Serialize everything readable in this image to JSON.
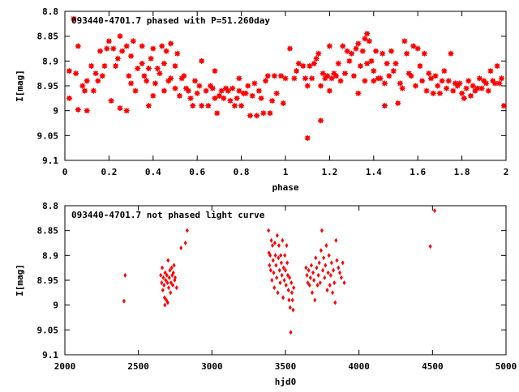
{
  "chart_data": [
    {
      "type": "scatter",
      "title": "093440-4701.7 phased with P=51.260day",
      "xlabel": "phase",
      "ylabel": "I[mag]",
      "xlim": [
        0,
        2
      ],
      "ylim": [
        9.1,
        8.8
      ],
      "y_inverted": true,
      "marker": "star",
      "grid": false,
      "color": "#ff0000",
      "xticks": [
        "0",
        "0.2",
        "0.4",
        "0.6",
        "0.8",
        "1",
        "1.2",
        "1.4",
        "1.6",
        "1.8",
        "2"
      ],
      "yticks": [
        "8.8",
        "8.85",
        "8.9",
        "8.95",
        "9",
        "9.05",
        "9.1"
      ],
      "points": [
        [
          0.02,
          8.92
        ],
        [
          0.02,
          8.975
        ],
        [
          0.04,
          8.815
        ],
        [
          0.05,
          8.925
        ],
        [
          0.06,
          8.998
        ],
        [
          0.06,
          8.87
        ],
        [
          0.08,
          8.95
        ],
        [
          0.09,
          8.96
        ],
        [
          0.1,
          9.0
        ],
        [
          0.1,
          8.94
        ],
        [
          0.12,
          8.91
        ],
        [
          0.13,
          8.96
        ],
        [
          0.14,
          8.925
        ],
        [
          0.15,
          8.94
        ],
        [
          0.16,
          8.88
        ],
        [
          0.17,
          8.93
        ],
        [
          0.18,
          8.91
        ],
        [
          0.19,
          8.875
        ],
        [
          0.2,
          8.86
        ],
        [
          0.21,
          8.98
        ],
        [
          0.22,
          8.875
        ],
        [
          0.23,
          8.91
        ],
        [
          0.24,
          8.895
        ],
        [
          0.25,
          8.85
        ],
        [
          0.25,
          8.995
        ],
        [
          0.26,
          8.88
        ],
        [
          0.28,
          8.87
        ],
        [
          0.28,
          9.0
        ],
        [
          0.29,
          8.93
        ],
        [
          0.3,
          8.945
        ],
        [
          0.3,
          8.89
        ],
        [
          0.31,
          8.86
        ],
        [
          0.32,
          8.96
        ],
        [
          0.33,
          8.915
        ],
        [
          0.35,
          8.905
        ],
        [
          0.35,
          8.87
        ],
        [
          0.36,
          8.93
        ],
        [
          0.37,
          8.94
        ],
        [
          0.38,
          8.915
        ],
        [
          0.38,
          8.99
        ],
        [
          0.39,
          8.895
        ],
        [
          0.4,
          8.875
        ],
        [
          0.4,
          8.97
        ],
        [
          0.41,
          8.945
        ],
        [
          0.42,
          8.915
        ],
        [
          0.43,
          8.925
        ],
        [
          0.44,
          8.87
        ],
        [
          0.45,
          8.905
        ],
        [
          0.45,
          8.96
        ],
        [
          0.46,
          8.88
        ],
        [
          0.47,
          8.94
        ],
        [
          0.48,
          8.865
        ],
        [
          0.48,
          8.935
        ],
        [
          0.5,
          8.91
        ],
        [
          0.5,
          8.955
        ],
        [
          0.51,
          8.885
        ],
        [
          0.52,
          8.97
        ],
        [
          0.53,
          8.935
        ],
        [
          0.54,
          8.93
        ],
        [
          0.55,
          8.955
        ],
        [
          0.56,
          8.96
        ],
        [
          0.57,
          8.975
        ],
        [
          0.58,
          8.99
        ],
        [
          0.59,
          8.94
        ],
        [
          0.6,
          8.965
        ],
        [
          0.61,
          8.95
        ],
        [
          0.62,
          8.99
        ],
        [
          0.62,
          8.9
        ],
        [
          0.64,
          8.96
        ],
        [
          0.65,
          8.99
        ],
        [
          0.66,
          8.95
        ],
        [
          0.67,
          8.955
        ],
        [
          0.68,
          8.975
        ],
        [
          0.68,
          8.92
        ],
        [
          0.69,
          9.005
        ],
        [
          0.7,
          8.97
        ],
        [
          0.71,
          8.96
        ],
        [
          0.72,
          8.975
        ],
        [
          0.73,
          8.955
        ],
        [
          0.74,
          8.96
        ],
        [
          0.75,
          8.98
        ],
        [
          0.76,
          8.955
        ],
        [
          0.77,
          8.99
        ],
        [
          0.78,
          8.975
        ],
        [
          0.79,
          8.96
        ],
        [
          0.79,
          8.935
        ],
        [
          0.8,
          8.99
        ],
        [
          0.81,
          8.965
        ],
        [
          0.82,
          8.965
        ],
        [
          0.83,
          8.95
        ],
        [
          0.84,
          9.01
        ],
        [
          0.85,
          8.97
        ],
        [
          0.86,
          8.945
        ],
        [
          0.87,
          9.01
        ],
        [
          0.88,
          8.96
        ],
        [
          0.89,
          8.975
        ],
        [
          0.9,
          9.005
        ],
        [
          0.91,
          8.94
        ],
        [
          0.92,
          8.93
        ],
        [
          0.93,
          9.005
        ],
        [
          0.94,
          8.98
        ],
        [
          0.95,
          8.93
        ],
        [
          0.96,
          8.965
        ],
        [
          0.98,
          8.93
        ],
        [
          0.99,
          8.985
        ],
        [
          1.0,
          8.935
        ],
        [
          1.02,
          8.875
        ],
        [
          1.04,
          8.935
        ],
        [
          1.05,
          8.92
        ],
        [
          1.06,
          8.905
        ],
        [
          1.08,
          8.91
        ],
        [
          1.09,
          8.935
        ],
        [
          1.1,
          9.055
        ],
        [
          1.1,
          8.95
        ],
        [
          1.11,
          8.91
        ],
        [
          1.12,
          8.935
        ],
        [
          1.13,
          8.905
        ],
        [
          1.14,
          8.895
        ],
        [
          1.15,
          8.885
        ],
        [
          1.16,
          8.95
        ],
        [
          1.16,
          9.02
        ],
        [
          1.17,
          8.925
        ],
        [
          1.18,
          8.935
        ],
        [
          1.19,
          8.93
        ],
        [
          1.2,
          8.96
        ],
        [
          1.2,
          8.87
        ],
        [
          1.21,
          8.935
        ],
        [
          1.22,
          8.925
        ],
        [
          1.23,
          8.93
        ],
        [
          1.24,
          8.905
        ],
        [
          1.25,
          8.94
        ],
        [
          1.26,
          8.87
        ],
        [
          1.27,
          8.925
        ],
        [
          1.28,
          8.88
        ],
        [
          1.29,
          8.9
        ],
        [
          1.3,
          8.885
        ],
        [
          1.31,
          8.93
        ],
        [
          1.32,
          8.875
        ],
        [
          1.33,
          8.865
        ],
        [
          1.33,
          8.965
        ],
        [
          1.34,
          8.91
        ],
        [
          1.35,
          8.88
        ],
        [
          1.36,
          8.94
        ],
        [
          1.36,
          8.855
        ],
        [
          1.37,
          8.845
        ],
        [
          1.37,
          8.905
        ],
        [
          1.38,
          8.86
        ],
        [
          1.39,
          8.9
        ],
        [
          1.4,
          8.92
        ],
        [
          1.4,
          8.94
        ],
        [
          1.41,
          8.88
        ],
        [
          1.42,
          8.935
        ],
        [
          1.43,
          8.935
        ],
        [
          1.44,
          8.885
        ],
        [
          1.45,
          8.945
        ],
        [
          1.45,
          8.99
        ],
        [
          1.46,
          8.905
        ],
        [
          1.47,
          8.93
        ],
        [
          1.48,
          8.88
        ],
        [
          1.49,
          8.92
        ],
        [
          1.5,
          8.905
        ],
        [
          1.51,
          8.985
        ],
        [
          1.52,
          8.945
        ],
        [
          1.53,
          8.955
        ],
        [
          1.54,
          8.86
        ],
        [
          1.55,
          8.885
        ],
        [
          1.56,
          8.925
        ],
        [
          1.57,
          8.93
        ],
        [
          1.58,
          8.87
        ],
        [
          1.59,
          8.95
        ],
        [
          1.6,
          8.875
        ],
        [
          1.61,
          8.91
        ],
        [
          1.62,
          8.94
        ],
        [
          1.63,
          8.885
        ],
        [
          1.64,
          8.96
        ],
        [
          1.65,
          8.925
        ],
        [
          1.66,
          8.935
        ],
        [
          1.67,
          8.965
        ],
        [
          1.68,
          8.93
        ],
        [
          1.69,
          8.95
        ],
        [
          1.7,
          8.965
        ],
        [
          1.71,
          8.94
        ],
        [
          1.72,
          8.92
        ],
        [
          1.73,
          8.955
        ],
        [
          1.74,
          8.94
        ],
        [
          1.75,
          8.885
        ],
        [
          1.76,
          8.96
        ],
        [
          1.77,
          8.945
        ],
        [
          1.78,
          8.95
        ],
        [
          1.79,
          8.945
        ],
        [
          1.8,
          8.965
        ],
        [
          1.81,
          8.975
        ],
        [
          1.82,
          8.955
        ],
        [
          1.83,
          8.94
        ],
        [
          1.84,
          8.97
        ],
        [
          1.85,
          8.95
        ],
        [
          1.86,
          8.96
        ],
        [
          1.87,
          8.955
        ],
        [
          1.88,
          8.935
        ],
        [
          1.89,
          8.955
        ],
        [
          1.9,
          8.94
        ],
        [
          1.91,
          8.945
        ],
        [
          1.92,
          8.96
        ],
        [
          1.93,
          8.92
        ],
        [
          1.94,
          8.94
        ],
        [
          1.95,
          8.945
        ],
        [
          1.96,
          8.91
        ],
        [
          1.97,
          8.945
        ],
        [
          1.98,
          8.935
        ],
        [
          1.99,
          8.99
        ]
      ]
    },
    {
      "type": "scatter",
      "title": "093440-4701.7 not phased light curve",
      "xlabel": "hjd0",
      "ylabel": "I[mag]",
      "xlim": [
        2000,
        5000
      ],
      "ylim": [
        9.1,
        8.8
      ],
      "y_inverted": true,
      "marker": "diamond",
      "grid": false,
      "color": "#ff0000",
      "xticks": [
        "2000",
        "2500",
        "3000",
        "3500",
        "4000",
        "4500",
        "5000"
      ],
      "yticks": [
        "8.8",
        "8.85",
        "8.9",
        "8.95",
        "9",
        "9.05",
        "9.1"
      ],
      "points": [
        [
          2402,
          8.992
        ],
        [
          2410,
          8.94
        ],
        [
          2652,
          8.94
        ],
        [
          2658,
          8.955
        ],
        [
          2662,
          8.925
        ],
        [
          2666,
          8.97
        ],
        [
          2670,
          8.945
        ],
        [
          2674,
          8.96
        ],
        [
          2678,
          8.985
        ],
        [
          2682,
          8.935
        ],
        [
          2686,
          8.95
        ],
        [
          2690,
          8.99
        ],
        [
          2694,
          8.94
        ],
        [
          2698,
          8.955
        ],
        [
          2702,
          8.91
        ],
        [
          2706,
          8.965
        ],
        [
          2710,
          8.945
        ],
        [
          2714,
          8.93
        ],
        [
          2718,
          8.975
        ],
        [
          2722,
          8.955
        ],
        [
          2726,
          8.925
        ],
        [
          2730,
          8.94
        ],
        [
          2734,
          8.96
        ],
        [
          2738,
          8.935
        ],
        [
          2742,
          8.92
        ],
        [
          2746,
          8.95
        ],
        [
          2750,
          8.945
        ],
        [
          2760,
          8.965
        ],
        [
          2680,
          9.0
        ],
        [
          2700,
          8.995
        ],
        [
          2790,
          8.885
        ],
        [
          2820,
          8.875
        ],
        [
          2832,
          8.85
        ],
        [
          3385,
          8.85
        ],
        [
          3388,
          8.895
        ],
        [
          3392,
          8.92
        ],
        [
          3396,
          8.9
        ],
        [
          3400,
          8.93
        ],
        [
          3404,
          8.87
        ],
        [
          3408,
          8.95
        ],
        [
          3412,
          8.88
        ],
        [
          3416,
          8.91
        ],
        [
          3420,
          8.935
        ],
        [
          3424,
          8.965
        ],
        [
          3428,
          8.875
        ],
        [
          3432,
          8.9
        ],
        [
          3436,
          8.92
        ],
        [
          3440,
          8.945
        ],
        [
          3444,
          8.86
        ],
        [
          3448,
          8.975
        ],
        [
          3452,
          8.905
        ],
        [
          3456,
          8.88
        ],
        [
          3460,
          8.93
        ],
        [
          3464,
          8.955
        ],
        [
          3468,
          8.9
        ],
        [
          3472,
          8.915
        ],
        [
          3476,
          8.94
        ],
        [
          3480,
          8.87
        ],
        [
          3484,
          8.985
        ],
        [
          3488,
          8.925
        ],
        [
          3492,
          8.95
        ],
        [
          3496,
          8.9
        ],
        [
          3500,
          8.93
        ],
        [
          3504,
          8.96
        ],
        [
          3508,
          8.88
        ],
        [
          3512,
          8.915
        ],
        [
          3516,
          8.94
        ],
        [
          3520,
          8.97
        ],
        [
          3524,
          8.99
        ],
        [
          3528,
          8.945
        ],
        [
          3532,
          9.005
        ],
        [
          3536,
          9.055
        ],
        [
          3540,
          8.955
        ],
        [
          3544,
          8.975
        ],
        [
          3548,
          8.99
        ],
        [
          3552,
          9.01
        ],
        [
          3556,
          8.965
        ],
        [
          3640,
          8.925
        ],
        [
          3646,
          8.94
        ],
        [
          3652,
          8.955
        ],
        [
          3658,
          8.93
        ],
        [
          3664,
          8.96
        ],
        [
          3670,
          8.945
        ],
        [
          3676,
          8.92
        ],
        [
          3682,
          8.975
        ],
        [
          3688,
          8.935
        ],
        [
          3694,
          8.95
        ],
        [
          3700,
          8.99
        ],
        [
          3706,
          8.905
        ],
        [
          3712,
          8.925
        ],
        [
          3718,
          8.96
        ],
        [
          3724,
          8.94
        ],
        [
          3730,
          8.915
        ],
        [
          3736,
          8.955
        ],
        [
          3742,
          8.89
        ],
        [
          3748,
          8.85
        ],
        [
          3754,
          8.93
        ],
        [
          3760,
          8.905
        ],
        [
          3766,
          8.945
        ],
        [
          3772,
          8.92
        ],
        [
          3778,
          8.88
        ],
        [
          3784,
          8.97
        ],
        [
          3790,
          8.935
        ],
        [
          3796,
          8.9
        ],
        [
          3802,
          8.96
        ],
        [
          3808,
          8.94
        ],
        [
          3814,
          8.915
        ],
        [
          3820,
          8.975
        ],
        [
          3826,
          8.93
        ],
        [
          3832,
          8.955
        ],
        [
          3838,
          8.995
        ],
        [
          3844,
          8.87
        ],
        [
          3850,
          8.91
        ],
        [
          3860,
          8.925
        ],
        [
          3870,
          8.935
        ],
        [
          3880,
          8.945
        ],
        [
          3890,
          8.915
        ],
        [
          3900,
          8.955
        ],
        [
          4485,
          8.882
        ],
        [
          4515,
          8.81
        ]
      ]
    }
  ]
}
